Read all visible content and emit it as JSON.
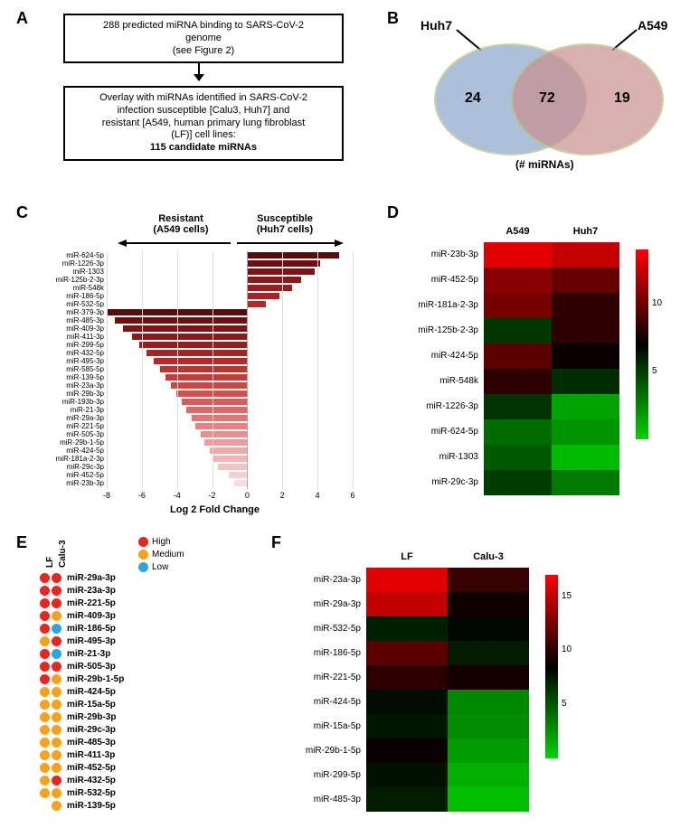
{
  "panel_labels": {
    "A": "A",
    "B": "B",
    "C": "C",
    "D": "D",
    "E": "E",
    "F": "F"
  },
  "colors": {
    "venn_left": "#8aa7c9",
    "venn_right": "#c98f8f",
    "venn_border": "#c5d78a",
    "dot_high": "#e8261e",
    "dot_med": "#f7a11c",
    "dot_low": "#2aa7e0",
    "black": "#000000"
  },
  "panelA": {
    "box1_lines": [
      "288 predicted miRNA binding to SARS-CoV-2",
      "genome",
      "(see Figure 2)"
    ],
    "box2_lines": [
      "Overlay with miRNAs identified in SARS-CoV-2",
      "infection susceptible [Calu3, Huh7] and",
      "resistant [A549, human primary lung fibroblast",
      "(LF)] cell lines:",
      "115 candidate miRNAs"
    ]
  },
  "panelB": {
    "left_label": "Huh7",
    "right_label": "A549",
    "left_count": "24",
    "mid_count": "72",
    "right_count": "19",
    "caption": "(# miRNAs)"
  },
  "panelC": {
    "title_left": "Resistant",
    "sub_left": "(A549 cells)",
    "title_right": "Susceptible",
    "sub_right": "(Huh7 cells)",
    "xlabel": "Log 2 Fold Change",
    "xmin": -8,
    "xmax": 6,
    "xtick_step": 2,
    "bars": [
      {
        "name": "miR-624-5p",
        "v": 5.2
      },
      {
        "name": "miR-1226-3p",
        "v": 4.1
      },
      {
        "name": "miR-1303",
        "v": 3.8
      },
      {
        "name": "miR-125b-2-3p",
        "v": 3.0
      },
      {
        "name": "miR-548k",
        "v": 2.5
      },
      {
        "name": "miR-186-5p",
        "v": 1.8
      },
      {
        "name": "miR-532-5p",
        "v": 1.0
      },
      {
        "name": "miR-379-3p",
        "v": -8.0
      },
      {
        "name": "miR-485-3p",
        "v": -7.6
      },
      {
        "name": "miR-409-3p",
        "v": -7.1
      },
      {
        "name": "miR-411-3p",
        "v": -6.6
      },
      {
        "name": "miR-299-5p",
        "v": -6.2
      },
      {
        "name": "miR-432-5p",
        "v": -5.8
      },
      {
        "name": "miR-495-3p",
        "v": -5.4
      },
      {
        "name": "miR-585-5p",
        "v": -5.0
      },
      {
        "name": "miR-139-5p",
        "v": -4.7
      },
      {
        "name": "miR-23a-3p",
        "v": -4.4
      },
      {
        "name": "miR-29b-3p",
        "v": -4.1
      },
      {
        "name": "miR-193b-3p",
        "v": -3.8
      },
      {
        "name": "miR-21-3p",
        "v": -3.5
      },
      {
        "name": "miR-29a-3p",
        "v": -3.2
      },
      {
        "name": "miR-221-5p",
        "v": -3.0
      },
      {
        "name": "miR-505-3p",
        "v": -2.7
      },
      {
        "name": "miR-29b-1-5p",
        "v": -2.5
      },
      {
        "name": "miR-424-5p",
        "v": -2.2
      },
      {
        "name": "miR-181a-2-3p",
        "v": -2.0
      },
      {
        "name": "miR-29c-3p",
        "v": -1.7
      },
      {
        "name": "miR-452-5p",
        "v": -1.1
      },
      {
        "name": "miR-23b-3p",
        "v": -0.8
      }
    ],
    "bar_colors_pos": [
      "#5b0a0a",
      "#6e0e0e",
      "#7d1313",
      "#8c1818",
      "#9a1d1d",
      "#a82323",
      "#b52929"
    ],
    "bar_colors_neg": [
      "#5b0a0a",
      "#6e0e0e",
      "#7d1313",
      "#8c1818",
      "#9a1d1d",
      "#a82323",
      "#b52929",
      "#bf3131",
      "#c83a3a",
      "#d04444",
      "#d64f4f",
      "#dc5a5a",
      "#e16767",
      "#e57474",
      "#e98181",
      "#ed8e8e",
      "#f09b9b",
      "#f3a8a8",
      "#f5b5b5",
      "#f8c2c2",
      "#facfcf",
      "#fcdcdc"
    ]
  },
  "panelD": {
    "cols": [
      "A549",
      "Huh7"
    ],
    "rows": [
      "miR-23b-3p",
      "miR-452-5p",
      "miR-181a-2-3p",
      "miR-125b-2-3p",
      "miR-424-5p",
      "miR-548k",
      "miR-1226-3p",
      "miR-624-5p",
      "miR-1303",
      "miR-29c-3p"
    ],
    "values": [
      [
        13.2,
        12.4
      ],
      [
        10.8,
        9.8
      ],
      [
        10.2,
        8.3
      ],
      [
        5.2,
        8.2
      ],
      [
        9.5,
        7.3
      ],
      [
        8.2,
        5.5
      ],
      [
        5.3,
        1.6
      ],
      [
        3.4,
        2.1
      ],
      [
        4.0,
        0.8
      ],
      [
        5.0,
        3.0
      ]
    ],
    "vmin": 0,
    "vmax": 14,
    "cbticks": [
      5,
      10
    ],
    "color_low": "#00d400",
    "color_mid": "#000000",
    "color_high": "#ff0000"
  },
  "panelE": {
    "cols": [
      "LF",
      "Calu-3"
    ],
    "legend": [
      {
        "label": "High",
        "color": "#e8261e"
      },
      {
        "label": "Medium",
        "color": "#f7a11c"
      },
      {
        "label": "Low",
        "color": "#2aa7e0"
      }
    ],
    "rows": [
      {
        "name": "miR-29a-3p",
        "c": [
          "H",
          "H"
        ]
      },
      {
        "name": "miR-23a-3p",
        "c": [
          "H",
          "H"
        ]
      },
      {
        "name": "miR-221-5p",
        "c": [
          "H",
          "H"
        ]
      },
      {
        "name": "miR-409-3p",
        "c": [
          "H",
          "M"
        ]
      },
      {
        "name": "miR-186-5p",
        "c": [
          "H",
          "L"
        ]
      },
      {
        "name": "miR-495-3p",
        "c": [
          "M",
          "H"
        ]
      },
      {
        "name": "miR-21-3p",
        "c": [
          "H",
          "L"
        ]
      },
      {
        "name": "miR-505-3p",
        "c": [
          "H",
          "H"
        ]
      },
      {
        "name": "miR-29b-1-5p",
        "c": [
          "H",
          "M"
        ]
      },
      {
        "name": "miR-424-5p",
        "c": [
          "M",
          "M"
        ]
      },
      {
        "name": "miR-15a-5p",
        "c": [
          "M",
          "M"
        ]
      },
      {
        "name": "miR-29b-3p",
        "c": [
          "M",
          "M"
        ]
      },
      {
        "name": "miR-29c-3p",
        "c": [
          "M",
          "M"
        ]
      },
      {
        "name": "miR-485-3p",
        "c": [
          "M",
          "M"
        ]
      },
      {
        "name": "miR-411-3p",
        "c": [
          "M",
          "M"
        ]
      },
      {
        "name": "miR-452-5p",
        "c": [
          "M",
          "M"
        ]
      },
      {
        "name": "miR-432-5p",
        "c": [
          "M",
          "H"
        ]
      },
      {
        "name": "miR-532-5p",
        "c": [
          "M",
          "M"
        ]
      },
      {
        "name": "miR-139-5p",
        "c": [
          null,
          "M"
        ]
      }
    ]
  },
  "panelF": {
    "cols": [
      "LF",
      "Calu-3"
    ],
    "rows": [
      "miR-23a-3p",
      "miR-29a-3p",
      "miR-532-5p",
      "miR-186-5p",
      "miR-221-5p",
      "miR-424-5p",
      "miR-15a-5p",
      "miR-29b-1-5p",
      "miR-299-5p",
      "miR-485-3p"
    ],
    "values": [
      [
        16.0,
        10.3
      ],
      [
        15.0,
        9.0
      ],
      [
        7.3,
        8.2
      ],
      [
        11.5,
        7.4
      ],
      [
        10.0,
        9.2
      ],
      [
        8.0,
        3.0
      ],
      [
        7.6,
        2.8
      ],
      [
        8.8,
        2.2
      ],
      [
        7.8,
        1.4
      ],
      [
        7.4,
        0.8
      ]
    ],
    "vmin": 0,
    "vmax": 17,
    "cbticks": [
      5,
      10,
      15
    ],
    "color_low": "#00d400",
    "color_mid": "#000000",
    "color_high": "#ff0000"
  }
}
